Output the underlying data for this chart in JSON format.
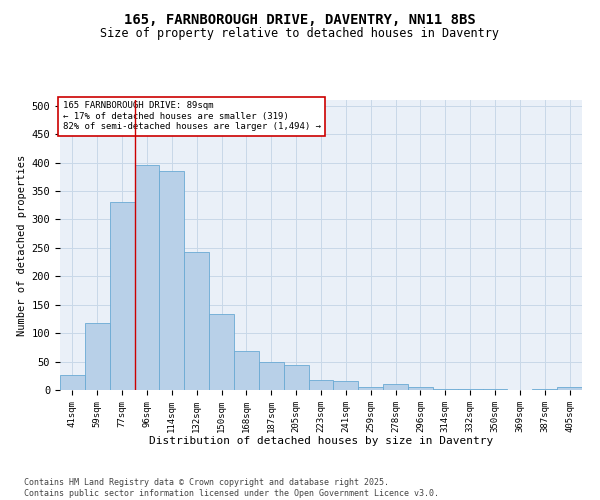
{
  "title": "165, FARNBOROUGH DRIVE, DAVENTRY, NN11 8BS",
  "subtitle": "Size of property relative to detached houses in Daventry",
  "xlabel": "Distribution of detached houses by size in Daventry",
  "ylabel": "Number of detached properties",
  "categories": [
    "41sqm",
    "59sqm",
    "77sqm",
    "96sqm",
    "114sqm",
    "132sqm",
    "150sqm",
    "168sqm",
    "187sqm",
    "205sqm",
    "223sqm",
    "241sqm",
    "259sqm",
    "278sqm",
    "296sqm",
    "314sqm",
    "332sqm",
    "350sqm",
    "369sqm",
    "387sqm",
    "405sqm"
  ],
  "values": [
    27,
    118,
    330,
    395,
    385,
    243,
    133,
    68,
    50,
    44,
    17,
    15,
    5,
    11,
    5,
    1,
    1,
    1,
    0,
    1,
    5
  ],
  "bar_color": "#b8d0e8",
  "bar_edge_color": "#6aaad4",
  "grid_color": "#c8d8e8",
  "background_color": "#eaf0f8",
  "vline_x": 2.5,
  "vline_color": "#cc0000",
  "annotation_text": "165 FARNBOROUGH DRIVE: 89sqm\n← 17% of detached houses are smaller (319)\n82% of semi-detached houses are larger (1,494) →",
  "annotation_box_color": "#ffffff",
  "annotation_edge_color": "#cc0000",
  "ylim": [
    0,
    510
  ],
  "yticks": [
    0,
    50,
    100,
    150,
    200,
    250,
    300,
    350,
    400,
    450,
    500
  ],
  "footer_line1": "Contains HM Land Registry data © Crown copyright and database right 2025.",
  "footer_line2": "Contains public sector information licensed under the Open Government Licence v3.0."
}
